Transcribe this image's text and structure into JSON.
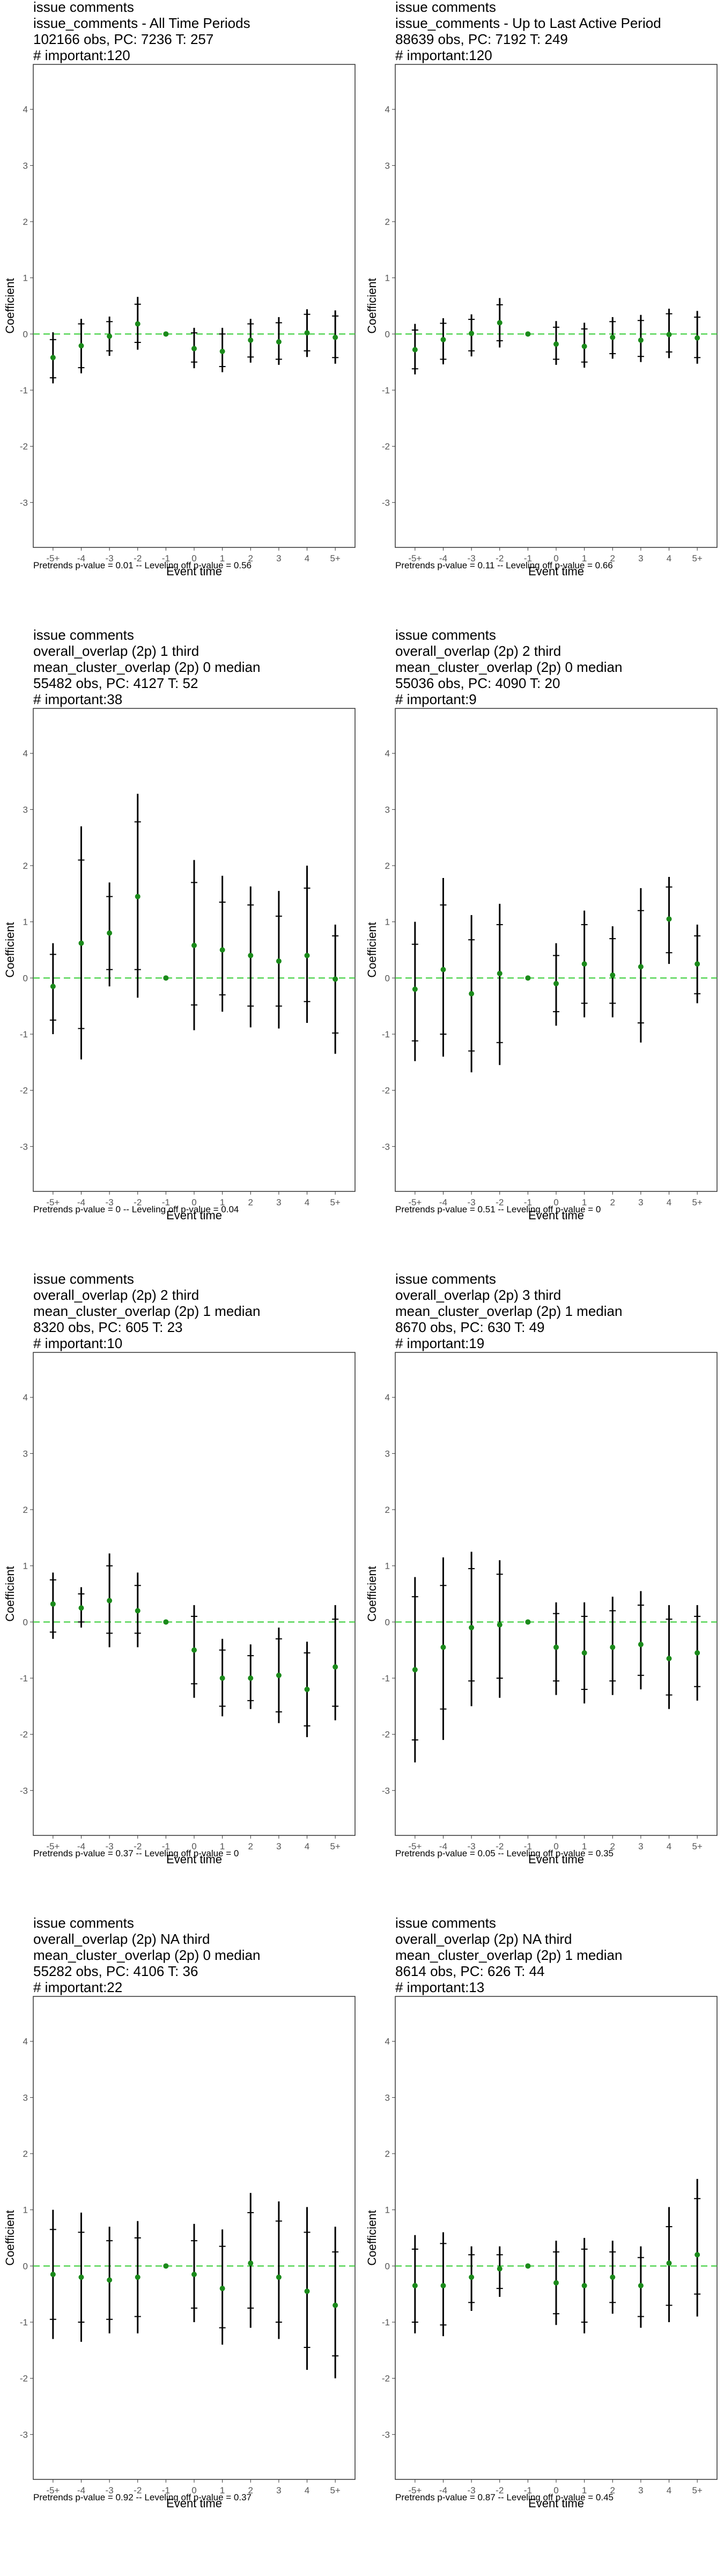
{
  "colors": {
    "point": "#1a8a1a",
    "zero_line": "#33cc33",
    "error_bar": "#000000",
    "frame": "#333333"
  },
  "chart_data": [
    {
      "type": "scatter",
      "title_lines": [
        "issue comments",
        "issue_comments - All Time Periods",
        "102166 obs, PC: 7236 T: 257",
        "# important:120"
      ],
      "xlabel": "Event time",
      "ylabel": "Coefficient",
      "ylim": [
        -3.8,
        4.8
      ],
      "y_ticks": [
        "-3",
        "-2",
        "-1",
        "0",
        "1",
        "2",
        "3",
        "4"
      ],
      "categories": [
        "-5+",
        "-4",
        "-3",
        "-2",
        "-1",
        "0",
        "1",
        "2",
        "3",
        "4",
        "5+"
      ],
      "values": [
        -0.42,
        -0.21,
        -0.04,
        0.18,
        0.0,
        -0.26,
        -0.31,
        -0.11,
        -0.14,
        0.02,
        -0.06
      ],
      "ci_outer": [
        [
          -0.88,
          0.03
        ],
        [
          -0.7,
          0.27
        ],
        [
          -0.39,
          0.31
        ],
        [
          -0.28,
          0.66
        ],
        [
          0,
          0
        ],
        [
          -0.61,
          0.11
        ],
        [
          -0.68,
          0.11
        ],
        [
          -0.51,
          0.27
        ],
        [
          -0.55,
          0.3
        ],
        [
          -0.41,
          0.44
        ],
        [
          -0.53,
          0.42
        ]
      ],
      "ci_inner": [
        [
          -0.78,
          -0.1
        ],
        [
          -0.6,
          0.18
        ],
        [
          -0.3,
          0.22
        ],
        [
          -0.15,
          0.53
        ],
        [
          0,
          0
        ],
        [
          -0.5,
          0.02
        ],
        [
          -0.58,
          0.0
        ],
        [
          -0.41,
          0.18
        ],
        [
          -0.45,
          0.2
        ],
        [
          -0.3,
          0.35
        ],
        [
          -0.42,
          0.32
        ]
      ],
      "footnote": "Pretrends p-value = 0.01 -- Leveling off p-value = 0.56"
    },
    {
      "type": "scatter",
      "title_lines": [
        "issue comments",
        "issue_comments - Up to Last Active Period",
        "88639 obs, PC: 7192 T: 249",
        "# important:120"
      ],
      "xlabel": "Event time",
      "ylabel": "Coefficient",
      "ylim": [
        -3.8,
        4.8
      ],
      "y_ticks": [
        "-3",
        "-2",
        "-1",
        "0",
        "1",
        "2",
        "3",
        "4"
      ],
      "categories": [
        "-5+",
        "-4",
        "-3",
        "-2",
        "-1",
        "0",
        "1",
        "2",
        "3",
        "4",
        "5+"
      ],
      "values": [
        -0.28,
        -0.1,
        0.01,
        0.2,
        0.0,
        -0.18,
        -0.22,
        -0.06,
        -0.11,
        -0.01,
        -0.07
      ],
      "ci_outer": [
        [
          -0.72,
          0.18
        ],
        [
          -0.54,
          0.28
        ],
        [
          -0.4,
          0.35
        ],
        [
          -0.24,
          0.64
        ],
        [
          0,
          0
        ],
        [
          -0.55,
          0.23
        ],
        [
          -0.6,
          0.2
        ],
        [
          -0.44,
          0.3
        ],
        [
          -0.5,
          0.34
        ],
        [
          -0.43,
          0.45
        ],
        [
          -0.53,
          0.41
        ]
      ],
      "ci_inner": [
        [
          -0.62,
          0.07
        ],
        [
          -0.45,
          0.19
        ],
        [
          -0.3,
          0.26
        ],
        [
          -0.12,
          0.52
        ],
        [
          0,
          0
        ],
        [
          -0.45,
          0.12
        ],
        [
          -0.5,
          0.09
        ],
        [
          -0.35,
          0.22
        ],
        [
          -0.4,
          0.24
        ],
        [
          -0.32,
          0.36
        ],
        [
          -0.42,
          0.3
        ]
      ],
      "footnote": "Pretrends p-value = 0.11 -- Leveling off p-value = 0.66"
    },
    {
      "type": "scatter",
      "title_lines": [
        "issue comments",
        "overall_overlap (2p) 1 third",
        "mean_cluster_overlap (2p) 0 median",
        "55482 obs, PC: 4127 T: 52",
        "# important:38"
      ],
      "xlabel": "Event time",
      "ylabel": "Coefficient",
      "ylim": [
        -3.8,
        4.8
      ],
      "y_ticks": [
        "-3",
        "-2",
        "-1",
        "0",
        "1",
        "2",
        "3",
        "4"
      ],
      "categories": [
        "-5+",
        "-4",
        "-3",
        "-2",
        "-1",
        "0",
        "1",
        "2",
        "3",
        "4",
        "5+"
      ],
      "values": [
        -0.15,
        0.62,
        0.8,
        1.45,
        0.0,
        0.58,
        0.5,
        0.4,
        0.3,
        0.4,
        -0.02
      ],
      "ci_outer": [
        [
          -1.0,
          0.62
        ],
        [
          -1.45,
          2.7
        ],
        [
          -0.15,
          1.7
        ],
        [
          -0.35,
          3.28
        ],
        [
          0,
          0
        ],
        [
          -0.93,
          2.1
        ],
        [
          -0.6,
          1.82
        ],
        [
          -0.88,
          1.63
        ],
        [
          -0.9,
          1.55
        ],
        [
          -0.8,
          2.0
        ],
        [
          -1.35,
          0.95
        ]
      ],
      "ci_inner": [
        [
          -0.75,
          0.42
        ],
        [
          -0.9,
          2.1
        ],
        [
          0.15,
          1.45
        ],
        [
          0.15,
          2.78
        ],
        [
          0,
          0
        ],
        [
          -0.48,
          1.7
        ],
        [
          -0.3,
          1.35
        ],
        [
          -0.5,
          1.3
        ],
        [
          -0.5,
          1.1
        ],
        [
          -0.42,
          1.6
        ],
        [
          -0.98,
          0.75
        ]
      ],
      "footnote": "Pretrends p-value = 0 -- Leveling off p-value = 0.04"
    },
    {
      "type": "scatter",
      "title_lines": [
        "issue comments",
        "overall_overlap (2p) 2 third",
        "mean_cluster_overlap (2p) 0 median",
        "55036 obs, PC: 4090 T: 20",
        "# important:9"
      ],
      "xlabel": "Event time",
      "ylabel": "Coefficient",
      "ylim": [
        -3.8,
        4.8
      ],
      "y_ticks": [
        "-3",
        "-2",
        "-1",
        "0",
        "1",
        "2",
        "3",
        "4"
      ],
      "categories": [
        "-5+",
        "-4",
        "-3",
        "-2",
        "-1",
        "0",
        "1",
        "2",
        "3",
        "4",
        "5+"
      ],
      "values": [
        -0.2,
        0.15,
        -0.28,
        0.08,
        0.0,
        -0.1,
        0.25,
        0.05,
        0.2,
        1.05,
        0.25
      ],
      "ci_outer": [
        [
          -1.48,
          1.0
        ],
        [
          -1.4,
          1.78
        ],
        [
          -1.68,
          1.12
        ],
        [
          -1.55,
          1.32
        ],
        [
          0,
          0
        ],
        [
          -0.85,
          0.62
        ],
        [
          -0.7,
          1.2
        ],
        [
          -0.7,
          0.92
        ],
        [
          -1.15,
          1.6
        ],
        [
          0.25,
          1.8
        ],
        [
          -0.45,
          0.95
        ]
      ],
      "ci_inner": [
        [
          -1.12,
          0.6
        ],
        [
          -1.0,
          1.3
        ],
        [
          -1.3,
          0.68
        ],
        [
          -1.15,
          0.95
        ],
        [
          0,
          0
        ],
        [
          -0.6,
          0.4
        ],
        [
          -0.45,
          0.95
        ],
        [
          -0.45,
          0.7
        ],
        [
          -0.8,
          1.2
        ],
        [
          0.45,
          1.62
        ],
        [
          -0.28,
          0.75
        ]
      ],
      "footnote": "Pretrends p-value = 0.51 -- Leveling off p-value = 0"
    },
    {
      "type": "scatter",
      "title_lines": [
        "issue comments",
        "overall_overlap (2p) 2 third",
        "mean_cluster_overlap (2p) 1 median",
        "8320 obs, PC: 605 T: 23",
        "# important:10"
      ],
      "xlabel": "Event time",
      "ylabel": "Coefficient",
      "ylim": [
        -3.8,
        4.8
      ],
      "y_ticks": [
        "-3",
        "-2",
        "-1",
        "0",
        "1",
        "2",
        "3",
        "4"
      ],
      "categories": [
        "-5+",
        "-4",
        "-3",
        "-2",
        "-1",
        "0",
        "1",
        "2",
        "3",
        "4",
        "5+"
      ],
      "values": [
        0.32,
        0.25,
        0.38,
        0.2,
        0.0,
        -0.5,
        -1.0,
        -1.0,
        -0.95,
        -1.2,
        -0.8
      ],
      "ci_outer": [
        [
          -0.3,
          0.88
        ],
        [
          -0.1,
          0.62
        ],
        [
          -0.45,
          1.22
        ],
        [
          -0.45,
          0.88
        ],
        [
          0,
          0
        ],
        [
          -1.35,
          0.3
        ],
        [
          -1.68,
          -0.3
        ],
        [
          -1.55,
          -0.4
        ],
        [
          -1.8,
          -0.1
        ],
        [
          -2.05,
          -0.35
        ],
        [
          -1.75,
          0.3
        ]
      ],
      "ci_inner": [
        [
          -0.18,
          0.75
        ],
        [
          0.0,
          0.5
        ],
        [
          -0.2,
          1.0
        ],
        [
          -0.2,
          0.65
        ],
        [
          0,
          0
        ],
        [
          -1.1,
          0.1
        ],
        [
          -1.5,
          -0.5
        ],
        [
          -1.4,
          -0.6
        ],
        [
          -1.6,
          -0.3
        ],
        [
          -1.85,
          -0.55
        ],
        [
          -1.5,
          0.05
        ]
      ],
      "footnote": "Pretrends p-value = 0.37 -- Leveling off p-value = 0"
    },
    {
      "type": "scatter",
      "title_lines": [
        "issue comments",
        "overall_overlap (2p) 3 third",
        "mean_cluster_overlap (2p) 1 median",
        "8670 obs, PC: 630 T: 49",
        "# important:19"
      ],
      "xlabel": "Event time",
      "ylabel": "Coefficient",
      "ylim": [
        -3.8,
        4.8
      ],
      "y_ticks": [
        "-3",
        "-2",
        "-1",
        "0",
        "1",
        "2",
        "3",
        "4"
      ],
      "categories": [
        "-5+",
        "-4",
        "-3",
        "-2",
        "-1",
        "0",
        "1",
        "2",
        "3",
        "4",
        "5+"
      ],
      "values": [
        -0.85,
        -0.45,
        -0.1,
        -0.05,
        0.0,
        -0.45,
        -0.55,
        -0.45,
        -0.4,
        -0.65,
        -0.55
      ],
      "ci_outer": [
        [
          -2.5,
          0.8
        ],
        [
          -2.1,
          1.15
        ],
        [
          -1.5,
          1.25
        ],
        [
          -1.35,
          1.1
        ],
        [
          0,
          0
        ],
        [
          -1.3,
          0.35
        ],
        [
          -1.45,
          0.35
        ],
        [
          -1.3,
          0.45
        ],
        [
          -1.2,
          0.55
        ],
        [
          -1.55,
          0.3
        ],
        [
          -1.4,
          0.3
        ]
      ],
      "ci_inner": [
        [
          -2.1,
          0.45
        ],
        [
          -1.55,
          0.65
        ],
        [
          -1.05,
          0.95
        ],
        [
          -1.0,
          0.85
        ],
        [
          0,
          0
        ],
        [
          -1.05,
          0.15
        ],
        [
          -1.2,
          0.1
        ],
        [
          -1.05,
          0.2
        ],
        [
          -0.95,
          0.3
        ],
        [
          -1.3,
          0.05
        ],
        [
          -1.15,
          0.1
        ]
      ],
      "footnote": "Pretrends p-value = 0.05 -- Leveling off p-value = 0.35"
    },
    {
      "type": "scatter",
      "title_lines": [
        "issue comments",
        "overall_overlap (2p) NA third",
        "mean_cluster_overlap (2p) 0 median",
        "55282 obs, PC: 4106 T: 36",
        "# important:22"
      ],
      "xlabel": "Event time",
      "ylabel": "Coefficient",
      "ylim": [
        -3.8,
        4.8
      ],
      "y_ticks": [
        "-3",
        "-2",
        "-1",
        "0",
        "1",
        "2",
        "3",
        "4"
      ],
      "categories": [
        "-5+",
        "-4",
        "-3",
        "-2",
        "-1",
        "0",
        "1",
        "2",
        "3",
        "4",
        "5+"
      ],
      "values": [
        -0.15,
        -0.2,
        -0.25,
        -0.2,
        0.0,
        -0.15,
        -0.4,
        0.05,
        -0.2,
        -0.45,
        -0.7
      ],
      "ci_outer": [
        [
          -1.3,
          1.0
        ],
        [
          -1.35,
          0.95
        ],
        [
          -1.2,
          0.7
        ],
        [
          -1.2,
          0.8
        ],
        [
          0,
          0
        ],
        [
          -1.0,
          0.75
        ],
        [
          -1.4,
          0.65
        ],
        [
          -1.1,
          1.3
        ],
        [
          -1.3,
          1.15
        ],
        [
          -1.85,
          1.05
        ],
        [
          -2.0,
          0.7
        ]
      ],
      "ci_inner": [
        [
          -0.95,
          0.65
        ],
        [
          -1.0,
          0.6
        ],
        [
          -0.95,
          0.45
        ],
        [
          -0.9,
          0.5
        ],
        [
          0,
          0
        ],
        [
          -0.75,
          0.45
        ],
        [
          -1.1,
          0.35
        ],
        [
          -0.75,
          0.95
        ],
        [
          -1.0,
          0.8
        ],
        [
          -1.45,
          0.6
        ],
        [
          -1.6,
          0.25
        ]
      ],
      "footnote": "Pretrends p-value = 0.92 -- Leveling off p-value = 0.37"
    },
    {
      "type": "scatter",
      "title_lines": [
        "issue comments",
        "overall_overlap (2p) NA third",
        "mean_cluster_overlap (2p) 1 median",
        "8614 obs, PC: 626 T: 44",
        "# important:13"
      ],
      "xlabel": "Event time",
      "ylabel": "Coefficient",
      "ylim": [
        -3.8,
        4.8
      ],
      "y_ticks": [
        "-3",
        "-2",
        "-1",
        "0",
        "1",
        "2",
        "3",
        "4"
      ],
      "categories": [
        "-5+",
        "-4",
        "-3",
        "-2",
        "-1",
        "0",
        "1",
        "2",
        "3",
        "4",
        "5+"
      ],
      "values": [
        -0.35,
        -0.35,
        -0.2,
        -0.05,
        0.0,
        -0.3,
        -0.35,
        -0.2,
        -0.35,
        0.05,
        0.2
      ],
      "ci_outer": [
        [
          -1.2,
          0.55
        ],
        [
          -1.25,
          0.6
        ],
        [
          -0.8,
          0.35
        ],
        [
          -0.55,
          0.35
        ],
        [
          0,
          0
        ],
        [
          -1.05,
          0.45
        ],
        [
          -1.2,
          0.5
        ],
        [
          -0.85,
          0.45
        ],
        [
          -1.1,
          0.35
        ],
        [
          -1.0,
          1.05
        ],
        [
          -0.9,
          1.55
        ]
      ],
      "ci_inner": [
        [
          -1.0,
          0.3
        ],
        [
          -1.05,
          0.4
        ],
        [
          -0.65,
          0.2
        ],
        [
          -0.4,
          0.2
        ],
        [
          0,
          0
        ],
        [
          -0.85,
          0.25
        ],
        [
          -1.0,
          0.3
        ],
        [
          -0.65,
          0.25
        ],
        [
          -0.9,
          0.15
        ],
        [
          -0.7,
          0.7
        ],
        [
          -0.5,
          1.2
        ]
      ],
      "footnote": "Pretrends p-value = 0.87 -- Leveling off p-value = 0.45"
    }
  ]
}
